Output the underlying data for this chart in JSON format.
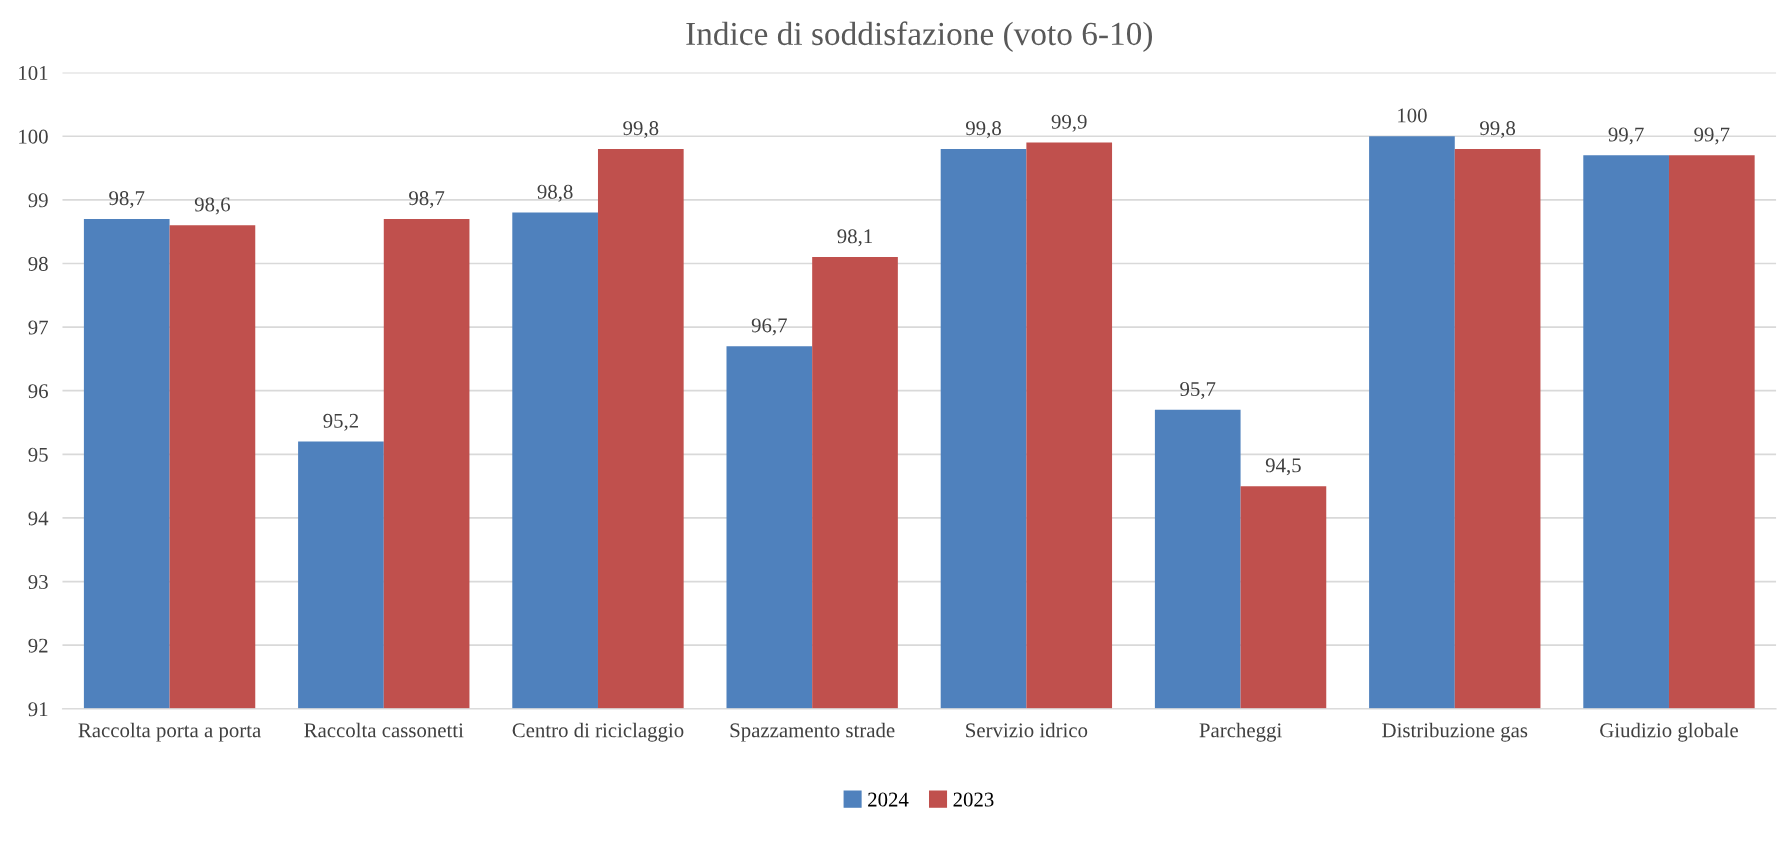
{
  "chart_data": {
    "type": "bar",
    "title": "Indice di soddisfazione (voto 6-10)",
    "categories": [
      "Raccolta porta a porta",
      "Raccolta cassonetti",
      "Centro di riciclaggio",
      "Spazzamento strade",
      "Servizio idrico",
      "Parcheggi",
      "Distribuzione gas",
      "Giudizio globale"
    ],
    "series": [
      {
        "name": "2024",
        "color": "#4f81bd",
        "values": [
          98.7,
          95.2,
          98.8,
          96.7,
          99.8,
          95.7,
          100,
          99.7
        ],
        "value_labels": [
          "98,7",
          "95,2",
          "98,8",
          "96,7",
          "99,8",
          "95,7",
          "100",
          "99,7"
        ]
      },
      {
        "name": "2023",
        "color": "#c0504d",
        "values": [
          98.6,
          98.7,
          99.8,
          98.1,
          99.9,
          94.5,
          99.8,
          99.7
        ],
        "value_labels": [
          "98,6",
          "98,7",
          "99,8",
          "98,1",
          "99,9",
          "94,5",
          "99,8",
          "99,7"
        ]
      }
    ],
    "ylim": [
      91,
      101
    ],
    "yticks": [
      91,
      92,
      93,
      94,
      95,
      96,
      97,
      98,
      99,
      100,
      101
    ],
    "grid": "y",
    "legend": "bottom"
  }
}
